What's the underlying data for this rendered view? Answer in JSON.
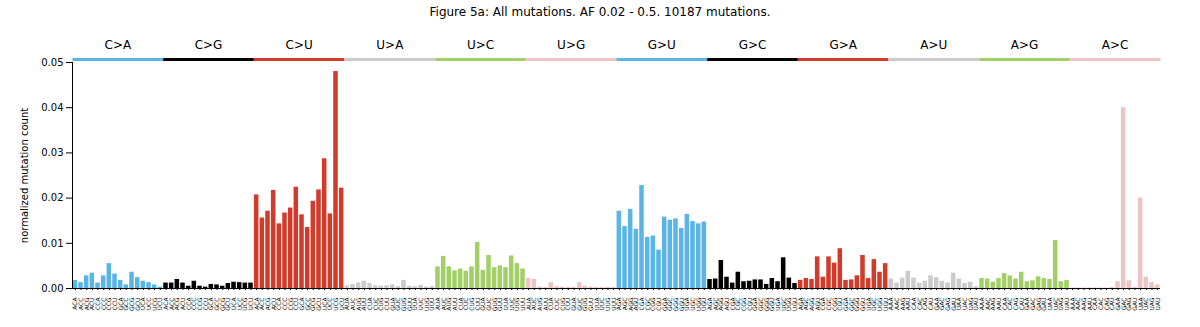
{
  "chart_data": {
    "type": "bar",
    "title": "Figure 5a: All mutations. AF 0.02 - 0.5. 10187 mutations.",
    "y_label": "normalized mutation count",
    "ylim": [
      0,
      0.05
    ],
    "yticks": [
      {
        "value": 0,
        "label": "0.00"
      },
      {
        "value": 0.01,
        "label": "0.01"
      },
      {
        "value": 0.02,
        "label": "0.02"
      },
      {
        "value": 0.03,
        "label": "0.03"
      },
      {
        "value": 0.04,
        "label": "0.04"
      },
      {
        "value": 0.05,
        "label": "0.05"
      }
    ],
    "grid": false,
    "series": [
      {
        "name": "C>A",
        "color": "#5ab4e5",
        "categories": [
          "ACA",
          "ACC",
          "ACG",
          "ACU",
          "CCA",
          "CCC",
          "CCG",
          "CCU",
          "GCA",
          "GCC",
          "GCG",
          "GCU",
          "UCA",
          "UCC",
          "UCG",
          "UCU"
        ],
        "values": [
          0.0018,
          0.0013,
          0.0028,
          0.0034,
          0.0012,
          0.0028,
          0.0055,
          0.0032,
          0.0018,
          0.0008,
          0.0036,
          0.0024,
          0.0016,
          0.0013,
          0.0008,
          0.0003
        ]
      },
      {
        "name": "C>G",
        "color": "#000000",
        "categories": [
          "ACA",
          "ACC",
          "ACG",
          "ACU",
          "CCA",
          "CCC",
          "CCG",
          "CCU",
          "GCA",
          "GCC",
          "GCG",
          "GCU",
          "UCA",
          "UCC",
          "UCG",
          "UCU"
        ],
        "values": [
          0.0012,
          0.0012,
          0.002,
          0.0012,
          0.0005,
          0.0016,
          0.0005,
          0.0003,
          0.0009,
          0.0008,
          0.0005,
          0.0011,
          0.0014,
          0.0013,
          0.0012,
          0.0012
        ]
      },
      {
        "name": "C>U",
        "color": "#d03b2c",
        "categories": [
          "ACA",
          "ACC",
          "ACG",
          "ACU",
          "CCA",
          "CCC",
          "CCG",
          "CCU",
          "GCA",
          "GCC",
          "GCG",
          "GCU",
          "UCA",
          "UCC",
          "UCG",
          "UCU"
        ],
        "values": [
          0.0207,
          0.0156,
          0.0171,
          0.0217,
          0.0143,
          0.0167,
          0.0178,
          0.0224,
          0.0163,
          0.0135,
          0.0193,
          0.0218,
          0.0287,
          0.0165,
          0.048,
          0.0222
        ]
      },
      {
        "name": "U>A",
        "color": "#cbcbcb",
        "categories": [
          "AUA",
          "AUC",
          "AUG",
          "AUU",
          "CUA",
          "CUC",
          "CUG",
          "CUU",
          "GUA",
          "GUC",
          "GUG",
          "GUU",
          "UUA",
          "UUC",
          "UUG",
          "UUU"
        ],
        "values": [
          0.0006,
          0.0009,
          0.0012,
          0.0016,
          0.0011,
          0.0006,
          0.0005,
          0.0006,
          0.0008,
          0.0004,
          0.0018,
          0.0005,
          0.0004,
          0.0007,
          0.0003,
          0.0004
        ]
      },
      {
        "name": "U>C",
        "color": "#a3cf69",
        "categories": [
          "AUA",
          "AUC",
          "AUG",
          "AUU",
          "CUA",
          "CUC",
          "CUG",
          "CUU",
          "GUA",
          "GUC",
          "GUG",
          "GUU",
          "UUA",
          "UUC",
          "UUG",
          "UUU"
        ],
        "values": [
          0.0048,
          0.0071,
          0.0048,
          0.0039,
          0.0043,
          0.0038,
          0.0048,
          0.0102,
          0.004,
          0.0073,
          0.0046,
          0.005,
          0.0046,
          0.0072,
          0.0055,
          0.0043
        ]
      },
      {
        "name": "U>G",
        "color": "#ecc4c4",
        "categories": [
          "AUA",
          "AUC",
          "AUG",
          "AUU",
          "CUA",
          "CUC",
          "CUG",
          "CUU",
          "GUA",
          "GUC",
          "GUG",
          "GUU",
          "UUA",
          "UUC",
          "UUG",
          "UUU"
        ],
        "values": [
          0.0022,
          0.002,
          0.0003,
          0.0002,
          0.0013,
          0.0004,
          0.0003,
          0.0002,
          0.0002,
          0.0013,
          0.0005,
          0.0003,
          0.0002,
          0.0002,
          0.0002,
          0.0002
        ]
      },
      {
        "name": "G>U",
        "color": "#5ab4e5",
        "categories": [
          "AGA",
          "AGC",
          "AGG",
          "AGU",
          "CGA",
          "CGC",
          "CGG",
          "CGU",
          "GGA",
          "GGC",
          "GGG",
          "GGU",
          "UGA",
          "UGC",
          "UGG",
          "UGU"
        ],
        "values": [
          0.0171,
          0.0137,
          0.0175,
          0.0131,
          0.0228,
          0.0113,
          0.0116,
          0.0085,
          0.0158,
          0.0151,
          0.0154,
          0.0133,
          0.0164,
          0.0148,
          0.0143,
          0.0147
        ]
      },
      {
        "name": "G>C",
        "color": "#000000",
        "categories": [
          "AGA",
          "AGC",
          "AGG",
          "AGU",
          "CGA",
          "CGC",
          "CGG",
          "CGU",
          "GGA",
          "GGC",
          "GGG",
          "GGU",
          "UGA",
          "UGC",
          "UGG",
          "UGU"
        ],
        "values": [
          0.002,
          0.0021,
          0.0062,
          0.0025,
          0.0012,
          0.0036,
          0.0015,
          0.0016,
          0.0019,
          0.0019,
          0.0009,
          0.0022,
          0.0015,
          0.0068,
          0.0023,
          0.0011
        ]
      },
      {
        "name": "G>A",
        "color": "#d03b2c",
        "categories": [
          "AGA",
          "AGC",
          "AGG",
          "AGU",
          "CGA",
          "CGC",
          "CGG",
          "CGU",
          "GGA",
          "GGC",
          "GGG",
          "GGU",
          "UGA",
          "UGC",
          "UGG",
          "UGU"
        ],
        "values": [
          0.0018,
          0.0022,
          0.002,
          0.007,
          0.0025,
          0.007,
          0.0056,
          0.0088,
          0.0018,
          0.0019,
          0.0028,
          0.0073,
          0.0022,
          0.0064,
          0.0036,
          0.0055
        ]
      },
      {
        "name": "A>U",
        "color": "#cbcbcb",
        "categories": [
          "AAA",
          "AAC",
          "AAG",
          "AAU",
          "CAA",
          "CAC",
          "CAG",
          "CAU",
          "GAA",
          "GAC",
          "GAG",
          "GAU",
          "UAA",
          "UAC",
          "UAG",
          "UAU"
        ],
        "values": [
          0.0021,
          0.0012,
          0.0023,
          0.0038,
          0.0023,
          0.0012,
          0.0016,
          0.0028,
          0.0024,
          0.0016,
          0.0012,
          0.0034,
          0.0021,
          0.0011,
          0.0014,
          0.0004
        ]
      },
      {
        "name": "A>G",
        "color": "#a3cf69",
        "categories": [
          "AAA",
          "AAC",
          "AAG",
          "AAU",
          "CAA",
          "CAC",
          "CAG",
          "CAU",
          "GAA",
          "GAC",
          "GAG",
          "GAU",
          "UAA",
          "UAC",
          "UAG",
          "UAU"
        ],
        "values": [
          0.0022,
          0.0021,
          0.0014,
          0.0022,
          0.0033,
          0.0028,
          0.0021,
          0.0036,
          0.0015,
          0.0017,
          0.0026,
          0.0022,
          0.002,
          0.0106,
          0.0015,
          0.0018
        ]
      },
      {
        "name": "A>C",
        "color": "#ecc4c4",
        "categories": [
          "AAA",
          "AAC",
          "AAG",
          "AAU",
          "CAA",
          "CAC",
          "CAG",
          "CAU",
          "GAA",
          "GAC",
          "GAG",
          "GAU",
          "UAA",
          "UAC",
          "UAG",
          "UAU"
        ],
        "values": [
          0.0001,
          0.0001,
          0.0001,
          0.0001,
          0.0001,
          0.0001,
          0.0001,
          0.0002,
          0.0015,
          0.04,
          0.0017,
          0.0002,
          0.02,
          0.0025,
          0.0013,
          0.0008
        ]
      }
    ]
  }
}
